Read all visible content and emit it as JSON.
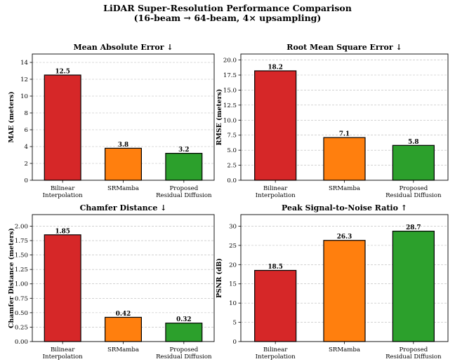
{
  "figure": {
    "title_line1": "LiDAR Super-Resolution Performance Comparison",
    "title_line2": "(16-beam → 64-beam, 4× upsampling)"
  },
  "chart_data": [
    {
      "type": "bar",
      "title": "Mean Absolute Error ↓",
      "xlabel": "",
      "ylabel": "MAE (meters)",
      "categories": [
        [
          "Bilinear",
          "Interpolation"
        ],
        [
          "SRMamba"
        ],
        [
          "Proposed",
          "Residual Diffusion"
        ]
      ],
      "values": [
        12.5,
        3.8,
        3.2
      ],
      "value_labels": [
        "12.5",
        "3.8",
        "3.2"
      ],
      "colors": [
        "#d62728",
        "#ff7f0e",
        "#2ca02c"
      ],
      "ylim": [
        0,
        15
      ],
      "yticks": [
        0,
        2,
        4,
        6,
        8,
        10,
        12,
        14
      ],
      "ytick_labels": [
        "0",
        "2",
        "4",
        "6",
        "8",
        "10",
        "12",
        "14"
      ],
      "grid": true
    },
    {
      "type": "bar",
      "title": "Root Mean Square Error ↓",
      "xlabel": "",
      "ylabel": "RMSE (meters)",
      "categories": [
        [
          "Bilinear",
          "Interpolation"
        ],
        [
          "SRMamba"
        ],
        [
          "Proposed",
          "Residual Diffusion"
        ]
      ],
      "values": [
        18.2,
        7.1,
        5.8
      ],
      "value_labels": [
        "18.2",
        "7.1",
        "5.8"
      ],
      "colors": [
        "#d62728",
        "#ff7f0e",
        "#2ca02c"
      ],
      "ylim": [
        0,
        21
      ],
      "yticks": [
        0,
        2.5,
        5,
        7.5,
        10,
        12.5,
        15,
        17.5,
        20
      ],
      "ytick_labels": [
        "0.0",
        "2.5",
        "5.0",
        "7.5",
        "10.0",
        "12.5",
        "15.0",
        "17.5",
        "20.0"
      ],
      "grid": true
    },
    {
      "type": "bar",
      "title": "Chamfer Distance ↓",
      "xlabel": "",
      "ylabel": "Chamfer Distance (meters)",
      "categories": [
        [
          "Bilinear",
          "Interpolation"
        ],
        [
          "SRMamba"
        ],
        [
          "Proposed",
          "Residual Diffusion"
        ]
      ],
      "values": [
        1.85,
        0.42,
        0.32
      ],
      "value_labels": [
        "1.85",
        "0.42",
        "0.32"
      ],
      "colors": [
        "#d62728",
        "#ff7f0e",
        "#2ca02c"
      ],
      "ylim": [
        0,
        2.2
      ],
      "yticks": [
        0,
        0.25,
        0.5,
        0.75,
        1,
        1.25,
        1.5,
        1.75,
        2
      ],
      "ytick_labels": [
        "0.00",
        "0.25",
        "0.50",
        "0.75",
        "1.00",
        "1.25",
        "1.50",
        "1.75",
        "2.00"
      ],
      "grid": true
    },
    {
      "type": "bar",
      "title": "Peak Signal-to-Noise Ratio ↑",
      "xlabel": "",
      "ylabel": "PSNR (dB)",
      "categories": [
        [
          "Bilinear",
          "Interpolation"
        ],
        [
          "SRMamba"
        ],
        [
          "Proposed",
          "Residual Diffusion"
        ]
      ],
      "values": [
        18.5,
        26.3,
        28.7
      ],
      "value_labels": [
        "18.5",
        "26.3",
        "28.7"
      ],
      "colors": [
        "#d62728",
        "#ff7f0e",
        "#2ca02c"
      ],
      "ylim": [
        0,
        33
      ],
      "yticks": [
        0,
        5,
        10,
        15,
        20,
        25,
        30
      ],
      "ytick_labels": [
        "0",
        "5",
        "10",
        "15",
        "20",
        "25",
        "30"
      ],
      "grid": true
    }
  ]
}
